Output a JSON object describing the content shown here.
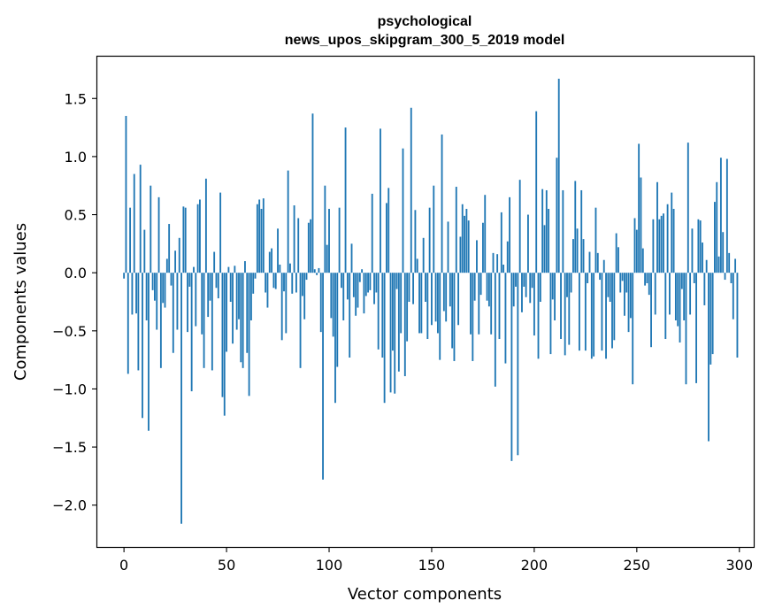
{
  "chart_data": {
    "type": "bar",
    "title": [
      "psychological",
      "news_upos_skipgram_300_5_2019 model"
    ],
    "xlabel": "Vector components",
    "ylabel": "Components values",
    "xlim": [
      -13,
      307
    ],
    "ylim": [
      -2.36,
      1.86
    ],
    "xticks": [
      0,
      50,
      100,
      150,
      200,
      250,
      300
    ],
    "yticks": [
      -2.0,
      -1.5,
      -1.0,
      -0.5,
      0.0,
      0.5,
      1.0,
      1.5
    ],
    "ytick_labels": [
      "−2.0",
      "−1.5",
      "−1.0",
      "−0.5",
      "0.0",
      "0.5",
      "1.0",
      "1.5"
    ],
    "bar_color": "#1f77b4",
    "grid": false,
    "x": "0..299",
    "values": [
      -0.05,
      1.35,
      -0.87,
      0.56,
      -0.36,
      0.85,
      -0.35,
      -0.84,
      0.93,
      -1.25,
      0.37,
      -0.41,
      -1.36,
      0.75,
      -0.15,
      -0.24,
      -0.49,
      0.65,
      -0.82,
      -0.26,
      -0.3,
      0.12,
      0.42,
      -0.11,
      -0.69,
      0.19,
      -0.49,
      0.3,
      -2.16,
      0.57,
      0.56,
      -0.51,
      -0.12,
      -1.02,
      0.05,
      -0.46,
      0.59,
      0.63,
      -0.53,
      -0.82,
      0.81,
      -0.38,
      -0.24,
      -0.84,
      0.18,
      -0.13,
      -0.22,
      0.69,
      -1.07,
      -1.23,
      -0.68,
      0.05,
      -0.25,
      -0.61,
      0.06,
      -0.49,
      -0.4,
      -0.77,
      -0.82,
      0.1,
      -0.69,
      -1.06,
      -0.41,
      -0.18,
      -0.05,
      0.59,
      0.63,
      0.55,
      0.64,
      -0.17,
      -0.3,
      0.18,
      0.21,
      -0.13,
      -0.14,
      0.38,
      0.07,
      -0.58,
      -0.16,
      -0.52,
      0.88,
      0.08,
      -0.18,
      0.58,
      -0.17,
      0.47,
      -0.82,
      -0.2,
      -0.4,
      -0.06,
      0.43,
      0.46,
      1.37,
      0.03,
      -0.02,
      0.04,
      -0.51,
      -1.78,
      0.75,
      0.24,
      0.55,
      -0.39,
      -0.55,
      -1.12,
      -0.81,
      0.56,
      -0.13,
      -0.41,
      1.25,
      -0.23,
      -0.73,
      0.25,
      -0.21,
      -0.37,
      -0.3,
      -0.08,
      0.03,
      -0.35,
      -0.2,
      -0.17,
      -0.15,
      0.68,
      -0.27,
      -0.17,
      -0.66,
      1.24,
      -0.73,
      -1.12,
      0.6,
      0.73,
      -1.03,
      -0.67,
      -1.04,
      -0.14,
      -0.85,
      -0.52,
      1.07,
      -0.89,
      -0.59,
      -0.25,
      1.42,
      -0.27,
      0.54,
      0.12,
      -0.52,
      -0.52,
      0.3,
      -0.25,
      -0.57,
      0.56,
      -0.45,
      0.75,
      -0.42,
      -0.52,
      -0.75,
      1.19,
      -0.33,
      -0.42,
      0.44,
      -0.29,
      -0.65,
      -0.76,
      0.74,
      -0.45,
      0.31,
      0.59,
      0.49,
      0.55,
      0.45,
      -0.53,
      -0.76,
      -0.24,
      0.28,
      -0.53,
      -0.19,
      0.43,
      0.67,
      -0.24,
      -0.29,
      -0.53,
      0.17,
      -0.98,
      0.16,
      -0.57,
      0.52,
      0.07,
      -0.78,
      0.27,
      0.65,
      -1.62,
      -0.29,
      -0.12,
      -1.57,
      0.8,
      -0.34,
      -0.12,
      -0.21,
      0.5,
      -0.26,
      -0.13,
      -0.54,
      1.39,
      -0.74,
      -0.25,
      0.72,
      0.41,
      0.71,
      0.55,
      -0.7,
      -0.23,
      -0.41,
      0.99,
      1.67,
      -0.57,
      0.71,
      -0.71,
      -0.21,
      -0.62,
      -0.17,
      0.29,
      0.79,
      0.38,
      -0.67,
      0.71,
      0.29,
      -0.67,
      -0.09,
      0.18,
      -0.74,
      -0.72,
      0.56,
      0.17,
      -0.06,
      -0.67,
      0.11,
      -0.74,
      -0.21,
      -0.25,
      -0.65,
      -0.58,
      0.34,
      0.22,
      -0.17,
      -0.07,
      -0.37,
      -0.17,
      -0.51,
      -0.39,
      -0.96,
      0.47,
      0.37,
      1.11,
      0.82,
      0.21,
      -0.11,
      -0.09,
      -0.19,
      -0.64,
      0.46,
      -0.36,
      0.78,
      0.46,
      0.49,
      0.51,
      -0.57,
      0.59,
      -0.36,
      0.69,
      0.55,
      -0.41,
      -0.46,
      -0.6,
      -0.14,
      -0.41,
      -0.96,
      1.12,
      -0.36,
      0.38,
      -0.09,
      -0.95,
      0.46,
      0.45,
      0.26,
      -0.28,
      0.11,
      -1.45,
      -0.79,
      -0.7,
      0.61,
      0.78,
      0.14,
      0.99,
      0.35,
      -0.06,
      0.98,
      0.17,
      -0.09,
      -0.4,
      0.12,
      -0.73
    ]
  }
}
